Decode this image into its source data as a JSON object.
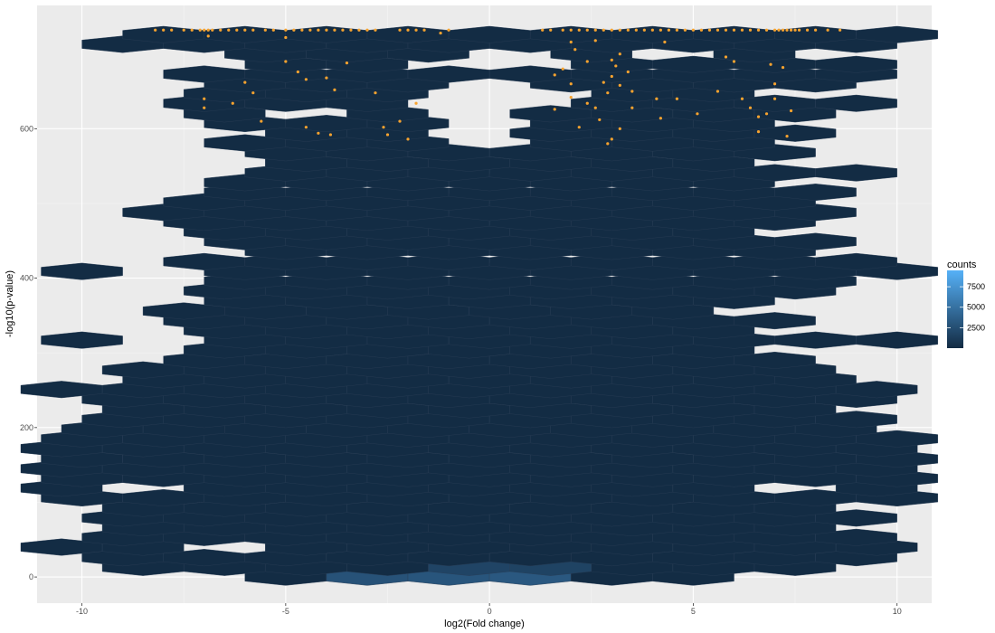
{
  "chart_data": {
    "type": "heatmap",
    "subtype": "hexbin",
    "xlabel": "log2(Fold change)",
    "ylabel": "-log10(p-value)",
    "xlim": [
      -11.1,
      10.85
    ],
    "ylim": [
      -35,
      765
    ],
    "x_ticks": [
      -10,
      -5,
      0,
      5,
      10
    ],
    "x_tick_labels": [
      "-10",
      "-5",
      "0",
      "5",
      "10"
    ],
    "y_ticks": [
      0,
      200,
      400,
      600
    ],
    "y_tick_labels": [
      "0",
      "200",
      "400",
      "600"
    ],
    "hex_dx": 1.0,
    "hex_dy": 13.2,
    "hex_rows": [
      {
        "y": 0,
        "x_start": -5,
        "x_end": 5,
        "missing": []
      },
      {
        "y": 13,
        "x_start": -8.5,
        "x_end": 8.5,
        "missing": []
      },
      {
        "y": 26,
        "x_start": -9,
        "x_end": 9,
        "missing": []
      },
      {
        "y": 40,
        "x_start": -10.5,
        "x_end": 10.5,
        "missing": [
          -6.5,
          -5.5
        ]
      },
      {
        "y": 53,
        "x_start": -9,
        "x_end": 9,
        "missing": []
      },
      {
        "y": 66,
        "x_start": -8.5,
        "x_end": 8.5,
        "missing": []
      },
      {
        "y": 79,
        "x_start": -9,
        "x_end": 9,
        "missing": []
      },
      {
        "y": 92,
        "x_start": -8.5,
        "x_end": 8.5,
        "missing": []
      },
      {
        "y": 106,
        "x_start": -10,
        "x_end": 10,
        "missing": []
      },
      {
        "y": 119,
        "x_start": -10.5,
        "x_end": 10.5,
        "missing": [
          -8.5,
          7.5
        ]
      },
      {
        "y": 132,
        "x_start": -10,
        "x_end": 10,
        "missing": []
      },
      {
        "y": 145,
        "x_start": -10.5,
        "x_end": 10.5,
        "missing": []
      },
      {
        "y": 158,
        "x_start": -10,
        "x_end": 10,
        "missing": []
      },
      {
        "y": 172,
        "x_start": -10.5,
        "x_end": 9.5,
        "missing": []
      },
      {
        "y": 185,
        "x_start": -10,
        "x_end": 10,
        "missing": []
      },
      {
        "y": 198,
        "x_start": -9.5,
        "x_end": 9.5,
        "missing": []
      },
      {
        "y": 211,
        "x_start": -9,
        "x_end": 9,
        "missing": []
      },
      {
        "y": 224,
        "x_start": -8.5,
        "x_end": 8.5,
        "missing": []
      },
      {
        "y": 238,
        "x_start": -9,
        "x_end": 9,
        "missing": []
      },
      {
        "y": 251,
        "x_start": -10.5,
        "x_end": 10.5,
        "missing": [
          6.5
        ]
      },
      {
        "y": 264,
        "x_start": -8,
        "x_end": 9,
        "missing": []
      },
      {
        "y": 277,
        "x_start": -8.5,
        "x_end": 8.5,
        "missing": []
      },
      {
        "y": 290,
        "x_start": -7,
        "x_end": 8,
        "missing": []
      },
      {
        "y": 304,
        "x_start": -6.5,
        "x_end": 6.5,
        "missing": []
      },
      {
        "y": 317,
        "x_start": -10,
        "x_end": 10,
        "missing": [
          -9,
          -8
        ]
      },
      {
        "y": 330,
        "x_start": -6.5,
        "x_end": 6.5,
        "missing": []
      },
      {
        "y": 343,
        "x_start": -7,
        "x_end": 7,
        "missing": []
      },
      {
        "y": 356,
        "x_start": -7.5,
        "x_end": 5.5,
        "missing": []
      },
      {
        "y": 370,
        "x_start": -6,
        "x_end": 7,
        "missing": []
      },
      {
        "y": 383,
        "x_start": -6.5,
        "x_end": 8.5,
        "missing": []
      },
      {
        "y": 396,
        "x_start": -6,
        "x_end": 8,
        "missing": []
      },
      {
        "y": 409,
        "x_start": -10,
        "x_end": 10,
        "missing": [
          -9,
          -8
        ]
      },
      {
        "y": 422,
        "x_start": -7,
        "x_end": 10.5,
        "missing": []
      },
      {
        "y": 436,
        "x_start": -5,
        "x_end": 7,
        "missing": []
      },
      {
        "y": 449,
        "x_start": -6,
        "x_end": 8,
        "missing": []
      },
      {
        "y": 462,
        "x_start": -6.5,
        "x_end": 6.5,
        "missing": []
      },
      {
        "y": 475,
        "x_start": -7,
        "x_end": 7,
        "missing": []
      },
      {
        "y": 488,
        "x_start": -8,
        "x_end": 9,
        "missing": []
      },
      {
        "y": 502,
        "x_start": -7,
        "x_end": 7,
        "missing": []
      },
      {
        "y": 515,
        "x_start": -6,
        "x_end": 8,
        "missing": [
          -4.5,
          -3.5
        ]
      },
      {
        "y": 528,
        "x_start": -6,
        "x_end": 7,
        "missing": []
      },
      {
        "y": 541,
        "x_start": -5,
        "x_end": 10.5,
        "missing": []
      },
      {
        "y": 554,
        "x_start": -4.5,
        "x_end": 6.5,
        "missing": []
      },
      {
        "y": 568,
        "x_start": -5,
        "x_end": 7,
        "missing": []
      },
      {
        "y": 581,
        "x_start": -6,
        "x_end": 6,
        "missing": [
          -1,
          0,
          1
        ]
      },
      {
        "y": 594,
        "x_start": -4.5,
        "x_end": 8.5,
        "missing": [
          -0.5,
          0.5
        ]
      },
      {
        "y": 607,
        "x_start": -6,
        "x_end": 6,
        "missing": [
          -1,
          0,
          1
        ]
      },
      {
        "y": 620,
        "x_start": -6.5,
        "x_end": 8.5,
        "missing": [
          -4.5,
          -3.5,
          -0.5,
          0.5
        ]
      },
      {
        "y": 634,
        "x_start": -7,
        "x_end": 9,
        "missing": [
          -1,
          0,
          1
        ]
      },
      {
        "y": 647,
        "x_start": -6.5,
        "x_end": 6.5,
        "missing": [
          -1.5,
          -0.5,
          0.5,
          1.5
        ]
      },
      {
        "y": 660,
        "x_start": -6,
        "x_end": 8,
        "missing": [
          -1,
          0,
          1
        ]
      },
      {
        "y": 673,
        "x_start": -7,
        "x_end": 9,
        "missing": [
          -1.5,
          -0.5,
          0.5,
          1.5
        ]
      },
      {
        "y": 686,
        "x_start": -5,
        "x_end": 9,
        "missing": [
          -1,
          0,
          1,
          2
        ]
      },
      {
        "y": 700,
        "x_start": -5.5,
        "x_end": 7.5,
        "missing": [
          -0.5,
          0.5,
          3.5,
          4.5
        ]
      },
      {
        "y": 713,
        "x_start": -9,
        "x_end": 9,
        "missing": []
      },
      {
        "y": 726,
        "x_start": -8,
        "x_end": 10,
        "missing": []
      }
    ],
    "bright_hexes": [
      {
        "x": -3,
        "y": 0,
        "count": 2800
      },
      {
        "x": -2,
        "y": 0,
        "count": 3400
      },
      {
        "x": -1,
        "y": 0,
        "count": 3000
      },
      {
        "x": 0,
        "y": 0,
        "count": 9500
      },
      {
        "x": 1,
        "y": 0,
        "count": 3200
      },
      {
        "x": 2,
        "y": 0,
        "count": 2900
      },
      {
        "x": -1.5,
        "y": 13,
        "count": 1900
      },
      {
        "x": 1.5,
        "y": 13,
        "count": 1700
      },
      {
        "x": -0.5,
        "y": 13,
        "count": 1800
      },
      {
        "x": 0.5,
        "y": 13,
        "count": 1800
      }
    ],
    "colorbar": {
      "title": "counts",
      "ticks": [
        2500,
        5000,
        7500
      ],
      "tick_labels": [
        "2500",
        "5000",
        "7500"
      ],
      "min": 1,
      "max": 9500,
      "low_color": "#132B43",
      "high_color": "#56B1F7"
    },
    "highlight_points": {
      "color": "#F7A32F",
      "points": [
        [
          -8.2,
          732
        ],
        [
          -8.0,
          732
        ],
        [
          -7.8,
          732
        ],
        [
          -7.5,
          732
        ],
        [
          -7.3,
          732
        ],
        [
          -7.1,
          732
        ],
        [
          -7.0,
          732
        ],
        [
          -6.9,
          732
        ],
        [
          -6.8,
          732
        ],
        [
          -6.6,
          732
        ],
        [
          -6.4,
          732
        ],
        [
          -6.2,
          732
        ],
        [
          -6.0,
          732
        ],
        [
          -5.8,
          732
        ],
        [
          -5.5,
          732
        ],
        [
          -5.3,
          732
        ],
        [
          -5.0,
          732
        ],
        [
          -4.8,
          732
        ],
        [
          -4.6,
          732
        ],
        [
          -4.4,
          732
        ],
        [
          -4.2,
          732
        ],
        [
          -4.0,
          732
        ],
        [
          -3.8,
          732
        ],
        [
          -3.6,
          732
        ],
        [
          -3.4,
          732
        ],
        [
          -3.2,
          732
        ],
        [
          -3.0,
          732
        ],
        [
          -2.8,
          732
        ],
        [
          -2.2,
          732
        ],
        [
          -2.0,
          732
        ],
        [
          -1.8,
          732
        ],
        [
          -1.6,
          732
        ],
        [
          -1.0,
          732
        ],
        [
          1.3,
          732
        ],
        [
          1.5,
          732
        ],
        [
          1.8,
          732
        ],
        [
          2.0,
          732
        ],
        [
          2.2,
          732
        ],
        [
          2.4,
          732
        ],
        [
          2.6,
          732
        ],
        [
          2.8,
          732
        ],
        [
          3.0,
          732
        ],
        [
          3.2,
          732
        ],
        [
          3.4,
          732
        ],
        [
          3.6,
          732
        ],
        [
          3.8,
          732
        ],
        [
          4.0,
          732
        ],
        [
          4.2,
          732
        ],
        [
          4.4,
          732
        ],
        [
          4.6,
          732
        ],
        [
          4.8,
          732
        ],
        [
          5.0,
          732
        ],
        [
          5.2,
          732
        ],
        [
          5.4,
          732
        ],
        [
          5.6,
          732
        ],
        [
          5.8,
          732
        ],
        [
          6.0,
          732
        ],
        [
          6.2,
          732
        ],
        [
          6.4,
          732
        ],
        [
          6.6,
          732
        ],
        [
          6.8,
          732
        ],
        [
          7.0,
          732
        ],
        [
          7.1,
          732
        ],
        [
          7.2,
          732
        ],
        [
          7.3,
          732
        ],
        [
          7.4,
          732
        ],
        [
          7.5,
          732
        ],
        [
          7.6,
          732
        ],
        [
          7.8,
          732
        ],
        [
          8.0,
          732
        ],
        [
          8.3,
          732
        ],
        [
          8.6,
          732
        ],
        [
          -6.9,
          724
        ],
        [
          -5.0,
          722
        ],
        [
          -1.2,
          728
        ],
        [
          -6.0,
          662
        ],
        [
          -5.0,
          690
        ],
        [
          -5.8,
          648
        ],
        [
          -7.0,
          640
        ],
        [
          -7.0,
          628
        ],
        [
          -6.3,
          634
        ],
        [
          -5.6,
          610
        ],
        [
          -4.7,
          676
        ],
        [
          -4.5,
          666
        ],
        [
          -4.0,
          668
        ],
        [
          -3.8,
          652
        ],
        [
          -3.5,
          688
        ],
        [
          -2.8,
          648
        ],
        [
          -2.6,
          602
        ],
        [
          -2.5,
          592
        ],
        [
          -2.2,
          610
        ],
        [
          -2.0,
          586
        ],
        [
          -4.5,
          602
        ],
        [
          -4.2,
          594
        ],
        [
          -3.9,
          592
        ],
        [
          -1.8,
          634
        ],
        [
          1.6,
          672
        ],
        [
          1.8,
          680
        ],
        [
          2.0,
          660
        ],
        [
          2.0,
          642
        ],
        [
          2.1,
          706
        ],
        [
          2.4,
          690
        ],
        [
          2.6,
          718
        ],
        [
          2.8,
          662
        ],
        [
          2.9,
          648
        ],
        [
          3.0,
          670
        ],
        [
          3.1,
          684
        ],
        [
          3.2,
          658
        ],
        [
          3.4,
          676
        ],
        [
          3.5,
          650
        ],
        [
          3.0,
          692
        ],
        [
          2.4,
          634
        ],
        [
          2.6,
          628
        ],
        [
          2.2,
          602
        ],
        [
          2.7,
          612
        ],
        [
          2.9,
          580
        ],
        [
          3.0,
          586
        ],
        [
          3.2,
          600
        ],
        [
          3.5,
          628
        ],
        [
          4.1,
          640
        ],
        [
          4.2,
          614
        ],
        [
          4.6,
          640
        ],
        [
          5.1,
          620
        ],
        [
          5.6,
          650
        ],
        [
          5.8,
          696
        ],
        [
          6.0,
          690
        ],
        [
          6.2,
          640
        ],
        [
          6.4,
          628
        ],
        [
          6.6,
          616
        ],
        [
          6.8,
          620
        ],
        [
          7.0,
          640
        ],
        [
          7.2,
          682
        ],
        [
          7.4,
          624
        ],
        [
          7.0,
          660
        ],
        [
          7.3,
          590
        ],
        [
          6.6,
          596
        ],
        [
          2.0,
          716
        ],
        [
          3.2,
          700
        ],
        [
          4.3,
          716
        ],
        [
          1.6,
          626
        ],
        [
          6.9,
          686
        ]
      ]
    }
  }
}
